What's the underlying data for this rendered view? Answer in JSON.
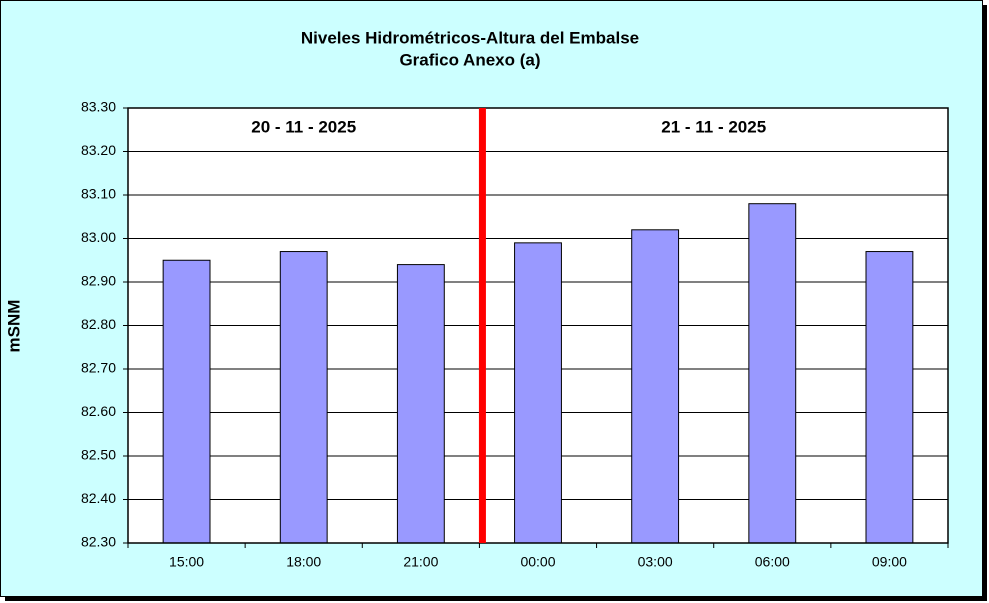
{
  "chart_data": {
    "type": "bar",
    "title": "Niveles Hidrométricos-Altura del Embalse",
    "subtitle": "Grafico Anexo (a)",
    "y_label": "mSNM",
    "annotations": [
      "20 - 11 - 2025",
      "21 - 11 - 2025"
    ],
    "categories": [
      "15:00",
      "18:00",
      "21:00",
      "00:00",
      "03:00",
      "06:00",
      "09:00"
    ],
    "values": [
      82.95,
      82.97,
      82.94,
      82.99,
      83.02,
      83.08,
      82.97
    ],
    "color": "#9999ff",
    "ylim": [
      82.3,
      83.3
    ],
    "yticks": [
      {
        "value": 82.3,
        "label": "82.30"
      },
      {
        "value": 82.4,
        "label": "82.40"
      },
      {
        "value": 82.5,
        "label": "82.50"
      },
      {
        "value": 82.6,
        "label": "82.60"
      },
      {
        "value": 82.7,
        "label": "82.70"
      },
      {
        "value": 82.8,
        "label": "82.80"
      },
      {
        "value": 82.9,
        "label": "82.90"
      },
      {
        "value": 83.0,
        "label": "83.00"
      },
      {
        "value": 83.1,
        "label": "83.10"
      },
      {
        "value": 83.2,
        "label": "83.20"
      },
      {
        "value": 83.3,
        "label": "83.30"
      }
    ],
    "grid": true
  }
}
